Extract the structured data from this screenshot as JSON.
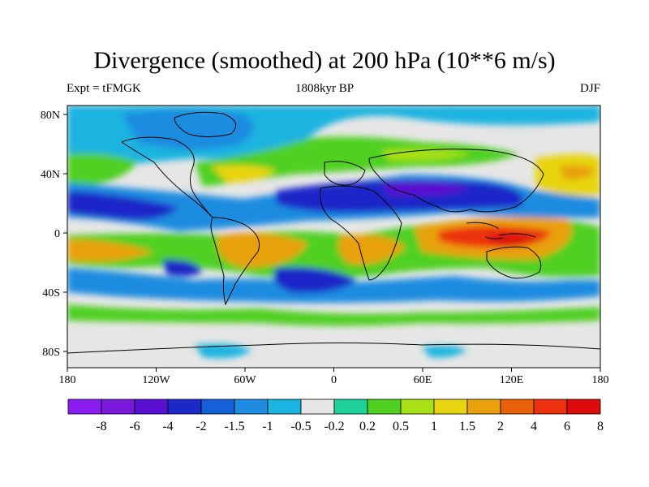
{
  "header": {
    "title": "Divergence (smoothed) at 200 hPa (10**6 m/s)",
    "left_label": "Expt = tFMGK",
    "center_label": "1808kyr BP",
    "right_label": "DJF"
  },
  "axes": {
    "lon_ticks": [
      "180",
      "120W",
      "60W",
      "0",
      "60E",
      "120E",
      "180"
    ],
    "lat_ticks": [
      "80N",
      "40N",
      "0",
      "40S",
      "80S"
    ]
  },
  "colorbar": {
    "colors": [
      "#8a1cf0",
      "#7a18dc",
      "#5a10d0",
      "#1c28c8",
      "#1460d8",
      "#1e8ce0",
      "#1ab4e0",
      "#e6e6e6",
      "#20d29a",
      "#50d020",
      "#a8e018",
      "#e8d410",
      "#e8a00c",
      "#e86008",
      "#ec3010",
      "#dc0c0c"
    ],
    "labels": [
      "-8",
      "-6",
      "-4",
      "-2",
      "-1.5",
      "-1",
      "-0.5",
      "-0.2",
      "0.2",
      "0.5",
      "1",
      "1.5",
      "2",
      "4",
      "6",
      "8"
    ]
  },
  "colors": {
    "background_zero": "#e6e6e6",
    "strong_convergence": "#1c28c8",
    "moderate_convergence": "#1e8ce0",
    "weak_convergence": "#1ab4e0",
    "strong_divergence": "#ec3010",
    "moderate_divergence": "#e8a00c",
    "weak_divergence": "#50d020",
    "coastline": "#000000"
  }
}
